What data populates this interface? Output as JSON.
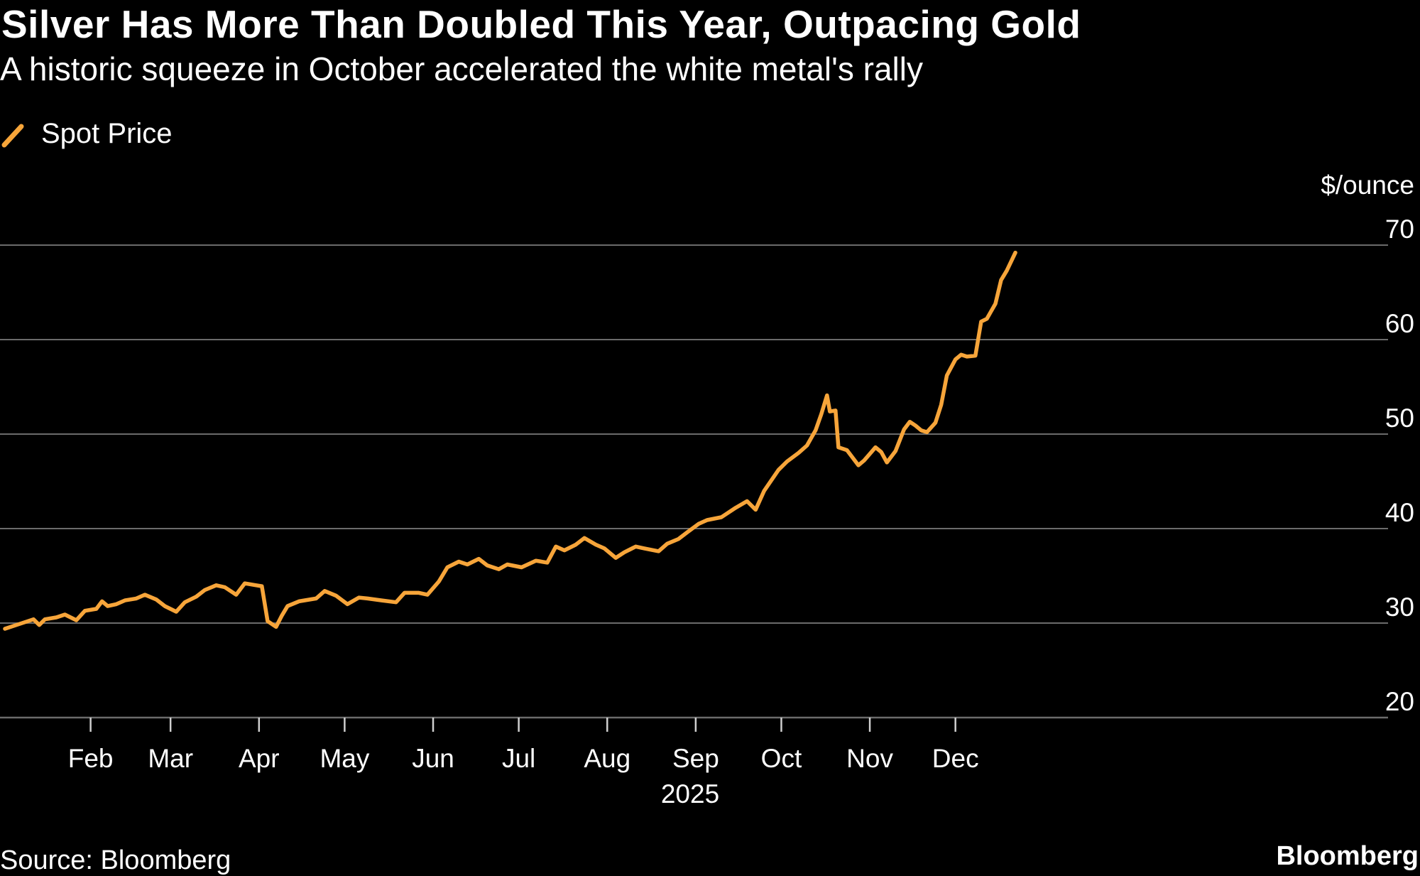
{
  "header": {
    "title": "Silver Has More Than Doubled This Year, Outpacing Gold",
    "subtitle": "A historic squeeze in October accelerated the white metal's rally"
  },
  "legend": {
    "label": "Spot Price",
    "icon": "slash-line-icon"
  },
  "footer": {
    "source": "Source: Bloomberg",
    "brand": "Bloomberg"
  },
  "colors": {
    "background": "#000000",
    "series": "#f7a53a",
    "grid": "#6b6b6b",
    "text": "#ffffff",
    "year": "#9a9a9a"
  },
  "chart_data": {
    "type": "line",
    "title": "Silver Has More Than Doubled This Year, Outpacing Gold",
    "subtitle": "A historic squeeze in October accelerated the white metal's rally",
    "xlabel": "2025",
    "ylabel": "$/ounce",
    "ylim": [
      20,
      70
    ],
    "yticks": [
      20,
      30,
      40,
      50,
      60,
      70
    ],
    "xticks": [
      "Feb",
      "Mar",
      "Apr",
      "May",
      "Jun",
      "Jul",
      "Aug",
      "Sep",
      "Oct",
      "Nov",
      "Dec"
    ],
    "grid": true,
    "legend_position": "top-left",
    "series": [
      {
        "name": "Spot Price",
        "points": [
          [
            "2025-01-02",
            29.4
          ],
          [
            "2025-01-06",
            29.8
          ],
          [
            "2025-01-09",
            30.1
          ],
          [
            "2025-01-12",
            30.4
          ],
          [
            "2025-01-14",
            29.8
          ],
          [
            "2025-01-16",
            30.4
          ],
          [
            "2025-01-20",
            30.6
          ],
          [
            "2025-01-23",
            30.9
          ],
          [
            "2025-01-27",
            30.3
          ],
          [
            "2025-01-30",
            31.3
          ],
          [
            "2025-02-03",
            31.5
          ],
          [
            "2025-02-05",
            32.3
          ],
          [
            "2025-02-07",
            31.8
          ],
          [
            "2025-02-10",
            32.0
          ],
          [
            "2025-02-13",
            32.4
          ],
          [
            "2025-02-17",
            32.6
          ],
          [
            "2025-02-20",
            33.0
          ],
          [
            "2025-02-24",
            32.5
          ],
          [
            "2025-02-27",
            31.8
          ],
          [
            "2025-03-03",
            31.2
          ],
          [
            "2025-03-06",
            32.2
          ],
          [
            "2025-03-10",
            32.8
          ],
          [
            "2025-03-13",
            33.5
          ],
          [
            "2025-03-17",
            34.0
          ],
          [
            "2025-03-20",
            33.8
          ],
          [
            "2025-03-24",
            33.0
          ],
          [
            "2025-03-27",
            34.2
          ],
          [
            "2025-03-31",
            34.0
          ],
          [
            "2025-04-02",
            33.9
          ],
          [
            "2025-04-04",
            30.2
          ],
          [
            "2025-04-07",
            29.6
          ],
          [
            "2025-04-09",
            30.8
          ],
          [
            "2025-04-11",
            31.8
          ],
          [
            "2025-04-15",
            32.3
          ],
          [
            "2025-04-21",
            32.6
          ],
          [
            "2025-04-24",
            33.4
          ],
          [
            "2025-04-28",
            32.9
          ],
          [
            "2025-05-02",
            32.0
          ],
          [
            "2025-05-06",
            32.7
          ],
          [
            "2025-05-09",
            32.6
          ],
          [
            "2025-05-14",
            32.4
          ],
          [
            "2025-05-19",
            32.2
          ],
          [
            "2025-05-22",
            33.2
          ],
          [
            "2025-05-27",
            33.2
          ],
          [
            "2025-05-30",
            33.0
          ],
          [
            "2025-06-03",
            34.4
          ],
          [
            "2025-06-06",
            35.9
          ],
          [
            "2025-06-10",
            36.5
          ],
          [
            "2025-06-13",
            36.2
          ],
          [
            "2025-06-17",
            36.8
          ],
          [
            "2025-06-20",
            36.1
          ],
          [
            "2025-06-24",
            35.7
          ],
          [
            "2025-06-27",
            36.2
          ],
          [
            "2025-07-02",
            35.9
          ],
          [
            "2025-07-07",
            36.6
          ],
          [
            "2025-07-11",
            36.4
          ],
          [
            "2025-07-14",
            38.1
          ],
          [
            "2025-07-17",
            37.7
          ],
          [
            "2025-07-21",
            38.3
          ],
          [
            "2025-07-24",
            39.0
          ],
          [
            "2025-07-28",
            38.3
          ],
          [
            "2025-07-31",
            37.9
          ],
          [
            "2025-08-04",
            36.9
          ],
          [
            "2025-08-07",
            37.5
          ],
          [
            "2025-08-11",
            38.1
          ],
          [
            "2025-08-14",
            37.9
          ],
          [
            "2025-08-19",
            37.6
          ],
          [
            "2025-08-22",
            38.4
          ],
          [
            "2025-08-26",
            38.9
          ],
          [
            "2025-08-29",
            39.6
          ],
          [
            "2025-09-02",
            40.5
          ],
          [
            "2025-09-05",
            40.9
          ],
          [
            "2025-09-10",
            41.2
          ],
          [
            "2025-09-15",
            42.2
          ],
          [
            "2025-09-19",
            42.9
          ],
          [
            "2025-09-22",
            42.0
          ],
          [
            "2025-09-25",
            44.0
          ],
          [
            "2025-09-30",
            46.2
          ],
          [
            "2025-10-03",
            47.1
          ],
          [
            "2025-10-07",
            48.0
          ],
          [
            "2025-10-10",
            48.8
          ],
          [
            "2025-10-13",
            50.4
          ],
          [
            "2025-10-15",
            52.1
          ],
          [
            "2025-10-17",
            54.1
          ],
          [
            "2025-10-18",
            52.4
          ],
          [
            "2025-10-20",
            52.5
          ],
          [
            "2025-10-21",
            48.6
          ],
          [
            "2025-10-24",
            48.3
          ],
          [
            "2025-10-28",
            46.7
          ],
          [
            "2025-10-30",
            47.2
          ],
          [
            "2025-11-03",
            48.6
          ],
          [
            "2025-11-05",
            48.1
          ],
          [
            "2025-11-07",
            47.0
          ],
          [
            "2025-11-10",
            48.2
          ],
          [
            "2025-11-13",
            50.5
          ],
          [
            "2025-11-15",
            51.3
          ],
          [
            "2025-11-17",
            50.9
          ],
          [
            "2025-11-19",
            50.4
          ],
          [
            "2025-11-21",
            50.2
          ],
          [
            "2025-11-24",
            51.2
          ],
          [
            "2025-11-26",
            53.1
          ],
          [
            "2025-11-28",
            56.2
          ],
          [
            "2025-12-01",
            57.9
          ],
          [
            "2025-12-03",
            58.4
          ],
          [
            "2025-12-05",
            58.2
          ],
          [
            "2025-12-08",
            58.3
          ],
          [
            "2025-12-10",
            61.9
          ],
          [
            "2025-12-12",
            62.2
          ],
          [
            "2025-12-15",
            63.8
          ],
          [
            "2025-12-17",
            66.3
          ],
          [
            "2025-12-19",
            67.3
          ],
          [
            "2025-12-22",
            69.2
          ]
        ]
      }
    ]
  }
}
